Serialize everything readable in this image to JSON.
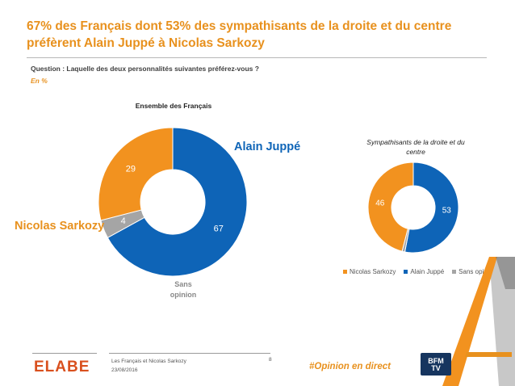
{
  "header": {
    "title": "67% des Français dont 53% des sympathisants de la droite et du centre préfèrent Alain Juppé à Nicolas Sarkozy",
    "question": "Question : Laquelle des deux personnalités suivantes préférez-vous ?",
    "unit": "En %"
  },
  "labels": {
    "juppe": "Alain Juppé",
    "sarkozy": "Nicolas Sarkozy",
    "sans_opinion": "Sans opinion"
  },
  "colors": {
    "juppe": "#0e64b7",
    "sarkozy": "#f2921f",
    "sans_opinion": "#a5a5a5",
    "accent": "#e8911e"
  },
  "chart_data": [
    {
      "type": "pie",
      "title": "Ensemble des Français",
      "categories": [
        "Alain Juppé",
        "Sans opinion",
        "Nicolas Sarkozy"
      ],
      "values": [
        67,
        4,
        29
      ]
    },
    {
      "type": "pie",
      "title": "Sympathisants de la droite et du centre",
      "categories": [
        "Alain Juppé",
        "Sans opinion",
        "Nicolas Sarkozy"
      ],
      "values": [
        53,
        1,
        46
      ],
      "data_labels": [
        "53",
        "",
        "46"
      ],
      "legend": [
        "Nicolas Sarkozy",
        "Alain Juppé",
        "Sans opinion"
      ],
      "legend_position": "bottom"
    }
  ],
  "footer": {
    "brand": "ELABE",
    "study": "Les Français et Nicolas Sarkozy",
    "date": "23/08/2016",
    "page": "8",
    "hashtag": "#Opinion en direct",
    "partner_logo_text": "BFM TV"
  }
}
